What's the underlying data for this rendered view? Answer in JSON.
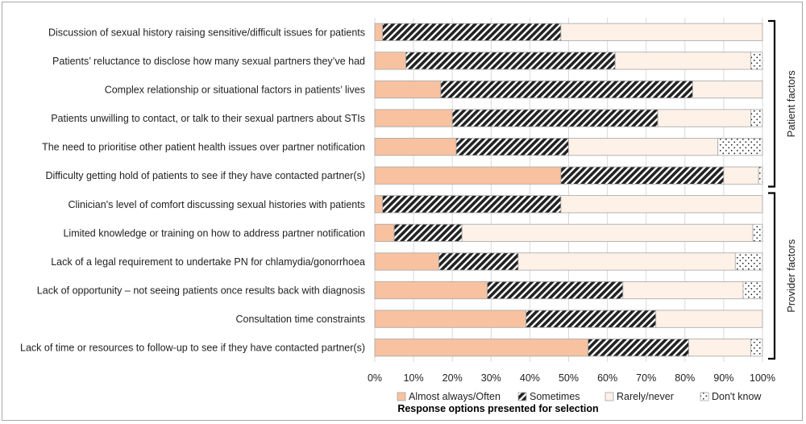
{
  "chart_data": {
    "type": "bar",
    "orientation": "horizontal",
    "stacked": "100%",
    "categories": [
      "Discussion of sexual history raising sensitive/difficult issues for patients",
      "Patients’ reluctance to disclose how many sexual partners they’ve had",
      "Complex relationship or situational factors in patients’ lives",
      "Patients unwilling to contact, or talk to their sexual partners about STIs",
      "The need to prioritise other patient health issues over partner notification",
      "Difficulty getting hold of patients to see if they have contacted partner(s)",
      "Clinician's level of comfort discussing sexual histories with patients",
      "Limited knowledge or training on how to address partner notification",
      "Lack of a legal requirement to undertake PN for chlamydia/gonorrhoea",
      "Lack of opportunity – not seeing patients once results back with diagnosis",
      "Consultation time constraints",
      "Lack of time or resources to follow-up to see if they have contacted partner(s)"
    ],
    "series": [
      {
        "name": "Almost always/Often",
        "color": "#f8c2a0",
        "pattern": "solid",
        "values": [
          2,
          8,
          17,
          20,
          21,
          48,
          2,
          5,
          16.5,
          29,
          39,
          55
        ]
      },
      {
        "name": "Sometimes",
        "color": "#222222",
        "pattern": "diagonal-hatch",
        "values": [
          46,
          54,
          65,
          53,
          29,
          42,
          46,
          17.5,
          20.5,
          35,
          33.5,
          26
        ]
      },
      {
        "name": "Rarely/never",
        "color": "#fdf1e8",
        "pattern": "solid",
        "values": [
          52,
          35,
          18,
          24,
          38.5,
          9,
          52,
          75,
          56,
          31,
          27.5,
          16
        ]
      },
      {
        "name": "Don't know",
        "color": "#ffffff",
        "pattern": "dots",
        "values": [
          0,
          3,
          0,
          3,
          11.5,
          1,
          0,
          2.5,
          7,
          5,
          0,
          3
        ]
      }
    ],
    "xlabel": "Response options presented for selection",
    "xticks": [
      "0%",
      "10%",
      "20%",
      "30%",
      "40%",
      "50%",
      "60%",
      "70%",
      "80%",
      "90%",
      "100%"
    ],
    "xlim": [
      0,
      100
    ],
    "grid": true,
    "legend_position": "bottom",
    "groups": [
      {
        "label": "Patient factors",
        "start_index": 0,
        "end_index": 5
      },
      {
        "label": "Provider factors",
        "start_index": 6,
        "end_index": 11
      }
    ]
  }
}
